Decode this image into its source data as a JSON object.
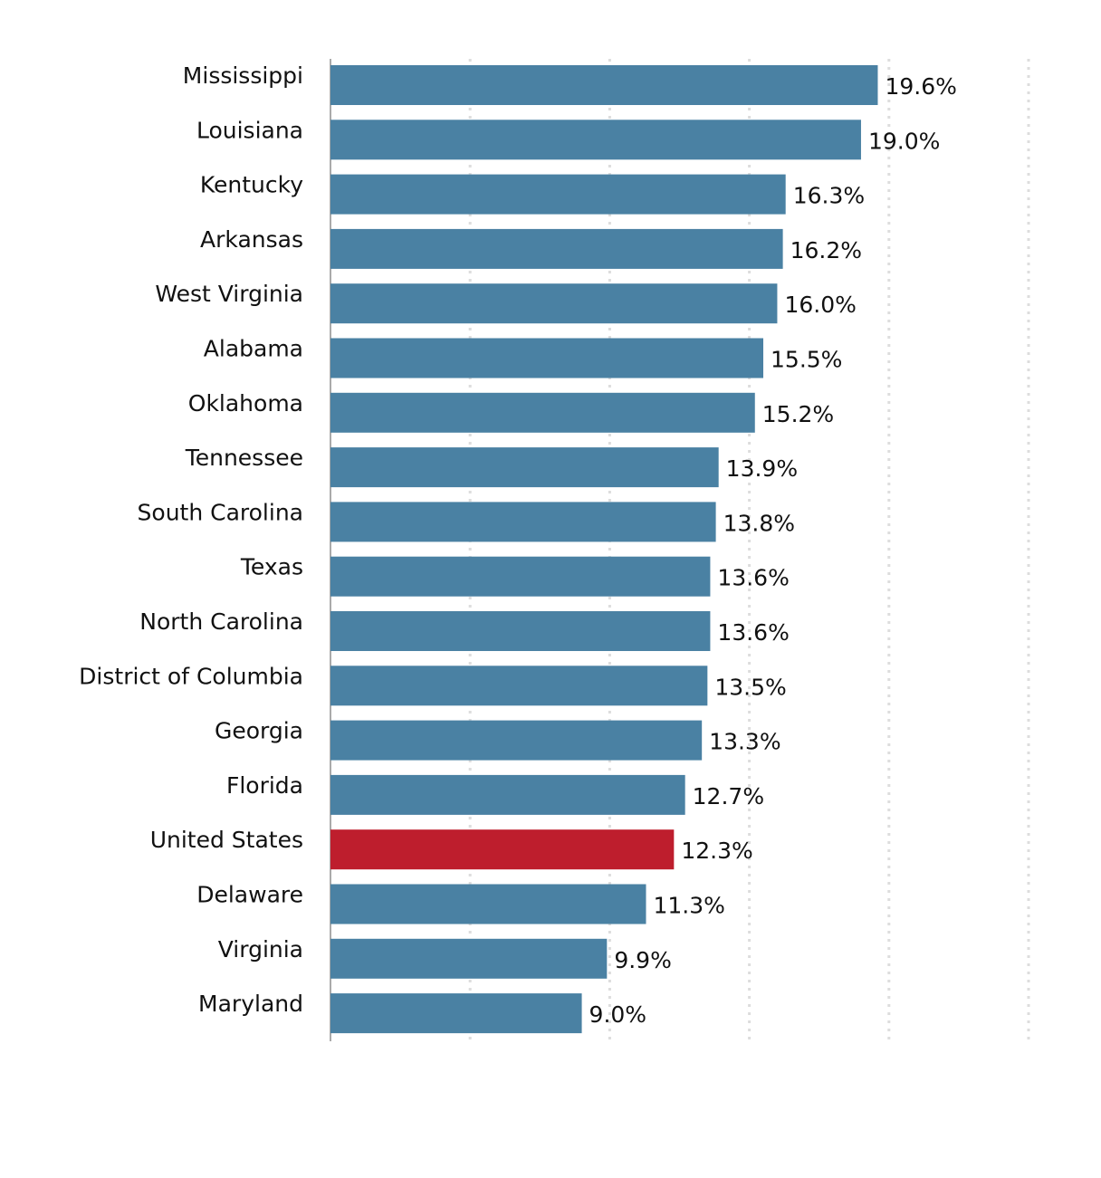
{
  "chart_data": {
    "type": "hbar",
    "categories": [
      "Mississippi",
      "Louisiana",
      "Kentucky",
      "Arkansas",
      "West Virginia",
      "Alabama",
      "Oklahoma",
      "Tennessee",
      "South Carolina",
      "Texas",
      "North Carolina",
      "District of Columbia",
      "Georgia",
      "Florida",
      "United States",
      "Delaware",
      "Virginia",
      "Maryland"
    ],
    "values": [
      19.6,
      19.0,
      16.3,
      16.2,
      16.0,
      15.5,
      15.2,
      13.9,
      13.8,
      13.6,
      13.6,
      13.5,
      13.3,
      12.7,
      12.3,
      11.3,
      9.9,
      9.0
    ],
    "value_labels": [
      "19.6%",
      "19.0%",
      "16.3%",
      "16.2%",
      "16.0%",
      "15.5%",
      "15.2%",
      "13.9%",
      "13.8%",
      "13.6%",
      "13.6%",
      "13.5%",
      "13.3%",
      "12.7%",
      "12.3%",
      "11.3%",
      "9.9%",
      "9.0%"
    ],
    "colors": [
      "#4a81a3",
      "#4a81a3",
      "#4a81a3",
      "#4a81a3",
      "#4a81a3",
      "#4a81a3",
      "#4a81a3",
      "#4a81a3",
      "#4a81a3",
      "#4a81a3",
      "#4a81a3",
      "#4a81a3",
      "#4a81a3",
      "#4a81a3",
      "#be1e2d",
      "#4a81a3",
      "#4a81a3",
      "#4a81a3"
    ],
    "xlim": [
      0,
      25
    ],
    "xticks": [
      0,
      5,
      10,
      15,
      20,
      25
    ],
    "grid": true
  }
}
